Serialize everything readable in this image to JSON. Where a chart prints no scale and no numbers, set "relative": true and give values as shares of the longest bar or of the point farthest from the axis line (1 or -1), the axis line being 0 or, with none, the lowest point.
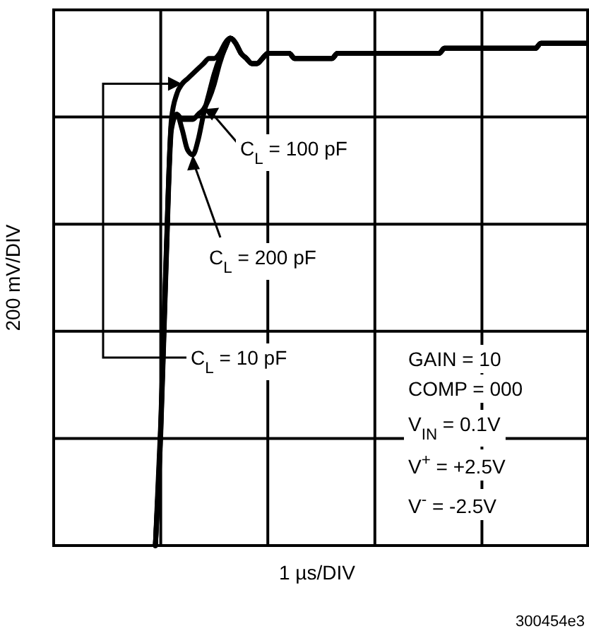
{
  "chart_data": {
    "type": "line",
    "relative": true,
    "grid": true,
    "xlabel": "1 µs/DIV",
    "ylabel": "200 mV/DIV",
    "categories": [
      null,
      null,
      null,
      null,
      null,
      null,
      null,
      null,
      null,
      null,
      null,
      null,
      null,
      null,
      null,
      null,
      null,
      null,
      null,
      null,
      null,
      null,
      null,
      null,
      null,
      null,
      null,
      null,
      null,
      null,
      null,
      null,
      null,
      null,
      null,
      null,
      null,
      null,
      null,
      null,
      null,
      null,
      null,
      null,
      null,
      null,
      null,
      null,
      null,
      null,
      null,
      null,
      null,
      null,
      null,
      null,
      null,
      null,
      null,
      null,
      null,
      null,
      null,
      null,
      null,
      null,
      null,
      null,
      null,
      null,
      null,
      null,
      null,
      null,
      null,
      null,
      null,
      null,
      null,
      null,
      null,
      null,
      null,
      null,
      null,
      null,
      null,
      null,
      null,
      null,
      null,
      null,
      null,
      null,
      null,
      null,
      null,
      null,
      null,
      null,
      null
    ],
    "series": [
      {
        "name": "C$_{L}$ = 10 pF",
        "color": "#000000",
        "values": [
          null,
          null,
          null,
          null,
          null,
          null,
          null,
          null,
          null,
          null,
          null,
          null,
          null,
          null,
          null,
          null,
          null,
          null,
          null,
          0,
          0.24,
          0.57,
          0.84,
          0.89,
          0.91,
          0.92,
          0.93,
          0.94,
          0.95,
          0.96,
          0.96,
          0.97,
          0.99,
          1.0,
          0.99,
          0.97,
          0.96,
          0.95,
          0.95,
          0.96,
          0.97,
          0.97,
          0.97,
          0.97,
          0.97,
          0.96,
          0.96,
          0.96,
          0.96,
          0.96,
          0.96,
          0.96,
          0.96,
          0.97,
          0.97,
          0.97,
          0.97,
          0.97,
          0.97,
          0.97,
          0.97,
          0.97,
          0.97,
          0.97,
          0.97,
          0.97,
          0.97,
          0.97,
          0.97,
          0.97,
          0.97,
          0.97,
          0.97,
          0.98,
          0.98,
          0.98,
          0.98,
          0.98,
          0.98,
          0.98,
          0.98,
          0.98,
          0.98,
          0.98,
          0.98,
          0.98,
          0.98,
          0.98,
          0.98,
          0.98,
          0.98,
          0.99,
          0.99,
          0.99,
          0.99,
          0.99,
          0.99,
          0.99,
          0.99,
          0.99,
          0.99
        ]
      },
      {
        "name": "C$_{L}$ = 100 pF",
        "color": "#000000",
        "values": [
          null,
          null,
          null,
          null,
          null,
          null,
          null,
          null,
          null,
          null,
          null,
          null,
          null,
          null,
          null,
          null,
          null,
          null,
          null,
          0,
          0.23,
          0.56,
          0.83,
          0.85,
          0.84,
          0.84,
          0.84,
          0.85,
          0.86,
          0.88,
          0.91,
          0.95,
          0.98,
          1.0,
          0.99,
          0.97,
          0.96,
          0.95,
          0.95,
          0.96,
          0.97,
          0.97,
          0.97,
          0.97,
          0.97,
          0.96,
          0.96,
          0.96,
          0.96,
          0.96,
          0.96,
          0.96,
          0.96,
          0.97,
          0.97,
          0.97,
          0.97,
          0.97,
          0.97,
          0.97,
          0.97,
          0.97,
          0.97,
          0.97,
          0.97,
          0.97,
          0.97,
          0.97,
          0.97,
          0.97,
          0.97,
          0.97,
          0.97,
          0.98,
          0.98,
          0.98,
          0.98,
          0.98,
          0.98,
          0.98,
          0.98,
          0.98,
          0.98,
          0.98,
          0.98,
          0.98,
          0.98,
          0.98,
          0.98,
          0.98,
          0.98,
          0.99,
          0.99,
          0.99,
          0.99,
          0.99,
          0.99,
          0.99,
          0.99,
          0.99,
          0.99
        ]
      },
      {
        "name": "C$_{L}$ = 200 pF",
        "color": "#000000",
        "values": [
          null,
          null,
          null,
          null,
          null,
          null,
          null,
          null,
          null,
          null,
          null,
          null,
          null,
          null,
          null,
          null,
          null,
          null,
          null,
          0,
          0.22,
          0.55,
          0.82,
          0.85,
          0.82,
          0.78,
          0.77,
          0.8,
          0.85,
          0.89,
          0.93,
          0.96,
          0.98,
          1.0,
          0.99,
          0.97,
          0.96,
          0.95,
          0.95,
          0.96,
          0.97,
          0.97,
          0.97,
          0.97,
          0.97,
          0.96,
          0.96,
          0.96,
          0.96,
          0.96,
          0.96,
          0.96,
          0.96,
          0.97,
          0.97,
          0.97,
          0.97,
          0.97,
          0.97,
          0.97,
          0.97,
          0.97,
          0.97,
          0.97,
          0.97,
          0.97,
          0.97,
          0.97,
          0.97,
          0.97,
          0.97,
          0.97,
          0.97,
          0.98,
          0.98,
          0.98,
          0.98,
          0.98,
          0.98,
          0.98,
          0.98,
          0.98,
          0.98,
          0.98,
          0.98,
          0.98,
          0.98,
          0.98,
          0.98,
          0.98,
          0.98,
          0.99,
          0.99,
          0.99,
          0.99,
          0.99,
          0.99,
          0.99,
          0.99,
          0.99,
          0.99
        ]
      }
    ],
    "annotations": [
      "GAIN = 10",
      "COMP = 000",
      "V$_{IN}$ = 0.1V",
      "V$^{+}$ = +2.5V",
      "V$^{-}$ = -2.5V",
      "300454e3"
    ]
  }
}
